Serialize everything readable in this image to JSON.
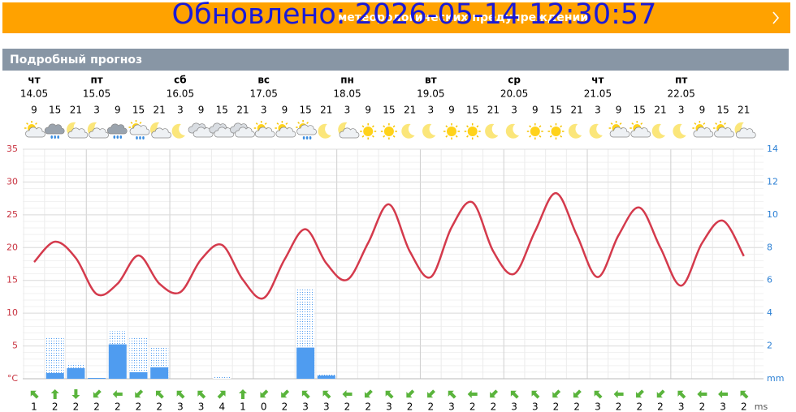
{
  "banner": {
    "text": "Обновлено: 2026-05-14 12:30:57",
    "under": "метеорологических предупреждений"
  },
  "section_title": "Подробный прогноз",
  "chart_data": {
    "type": "line",
    "days": [
      {
        "name": "чт",
        "date": "14.05"
      },
      {
        "name": "пт",
        "date": "15.05"
      },
      {
        "name": "сб",
        "date": "16.05"
      },
      {
        "name": "вс",
        "date": "17.05"
      },
      {
        "name": "пн",
        "date": "18.05"
      },
      {
        "name": "вт",
        "date": "19.05"
      },
      {
        "name": "ср",
        "date": "20.05"
      },
      {
        "name": "чт",
        "date": "21.05"
      },
      {
        "name": "пт",
        "date": "22.05"
      }
    ],
    "categories": [
      9,
      15,
      21,
      3,
      9,
      15,
      21,
      3,
      9,
      15,
      21,
      3,
      9,
      15,
      21,
      3,
      9,
      15,
      21,
      3,
      9,
      15,
      21,
      3,
      9,
      15,
      21,
      3,
      9,
      15,
      21,
      3,
      9,
      15,
      21
    ],
    "icons": [
      "sun-cloud",
      "rain",
      "moon-cloud",
      "moon-cloud",
      "rain",
      "sun-rain",
      "moon-cloud",
      "moon",
      "cloud",
      "cloud",
      "cloud",
      "sun-cloud",
      "sun-cloud",
      "sun-rain",
      "moon",
      "moon-cloud",
      "sun",
      "sun",
      "moon",
      "moon",
      "sun",
      "sun",
      "moon",
      "moon",
      "sun",
      "sun",
      "moon",
      "moon",
      "sun-cloud",
      "sun-cloud",
      "moon",
      "moon",
      "sun-cloud",
      "sun-cloud",
      "moon-cloud"
    ],
    "series": [
      {
        "type": "line",
        "color": "#d43a4c",
        "values": [
          17.8,
          20.9,
          18.4,
          12.9,
          14.5,
          18.8,
          14.5,
          13.2,
          18.2,
          20.4,
          15.1,
          12.3,
          18.2,
          22.8,
          17.6,
          15.1,
          20.7,
          26.6,
          19.4,
          15.5,
          23.1,
          26.9,
          19.4,
          16.0,
          22.5,
          28.3,
          21.9,
          15.5,
          21.9,
          26.1,
          20.0,
          14.2,
          20.7,
          24.1,
          18.7
        ]
      },
      {
        "type": "bar",
        "pattern": "dotted",
        "axis": "y2",
        "color": "#4f9cf0",
        "values": [
          0,
          2.5,
          0.95,
          0.05,
          2.9,
          2.5,
          1.9,
          0,
          0,
          0.15,
          0,
          0,
          0,
          5.45,
          0.25,
          0,
          0,
          0,
          0,
          0,
          0,
          0,
          0,
          0,
          0,
          0,
          0,
          0,
          0,
          0,
          0,
          0,
          0,
          0,
          0
        ]
      },
      {
        "type": "bar",
        "axis": "y2",
        "color": "#4f9cf0",
        "values": [
          0,
          0.35,
          0.65,
          0.05,
          2.1,
          0.4,
          0.7,
          0,
          0,
          0,
          0,
          0,
          0,
          1.9,
          0.2,
          0,
          0,
          0,
          0,
          0,
          0,
          0,
          0,
          0,
          0,
          0,
          0,
          0,
          0,
          0,
          0,
          0,
          0,
          0,
          0
        ]
      }
    ],
    "ylim": [
      0,
      35
    ],
    "yticks": [
      {
        "value": 0,
        "label": "°C"
      },
      5,
      10,
      15,
      20,
      25,
      30,
      35
    ],
    "y2lim": [
      0,
      14
    ],
    "y2ticks": [
      {
        "value": 0,
        "label": "mm"
      },
      2,
      4,
      6,
      8,
      10,
      12,
      14
    ],
    "grid": true,
    "wind": {
      "unit": "ms",
      "color": "#5ab43c",
      "speed": [
        1,
        2,
        2,
        2,
        2,
        2,
        2,
        3,
        3,
        4,
        1,
        0,
        2,
        3,
        3,
        2,
        2,
        3,
        2,
        2,
        3,
        2,
        2,
        3,
        3,
        2,
        2,
        3,
        2,
        2,
        2,
        3,
        2,
        3,
        2
      ],
      "direction": [
        315,
        0,
        180,
        225,
        270,
        225,
        315,
        315,
        315,
        45,
        0,
        225,
        225,
        315,
        315,
        270,
        225,
        315,
        225,
        225,
        315,
        270,
        225,
        315,
        315,
        225,
        225,
        315,
        270,
        225,
        225,
        315,
        270,
        270,
        315
      ]
    }
  }
}
